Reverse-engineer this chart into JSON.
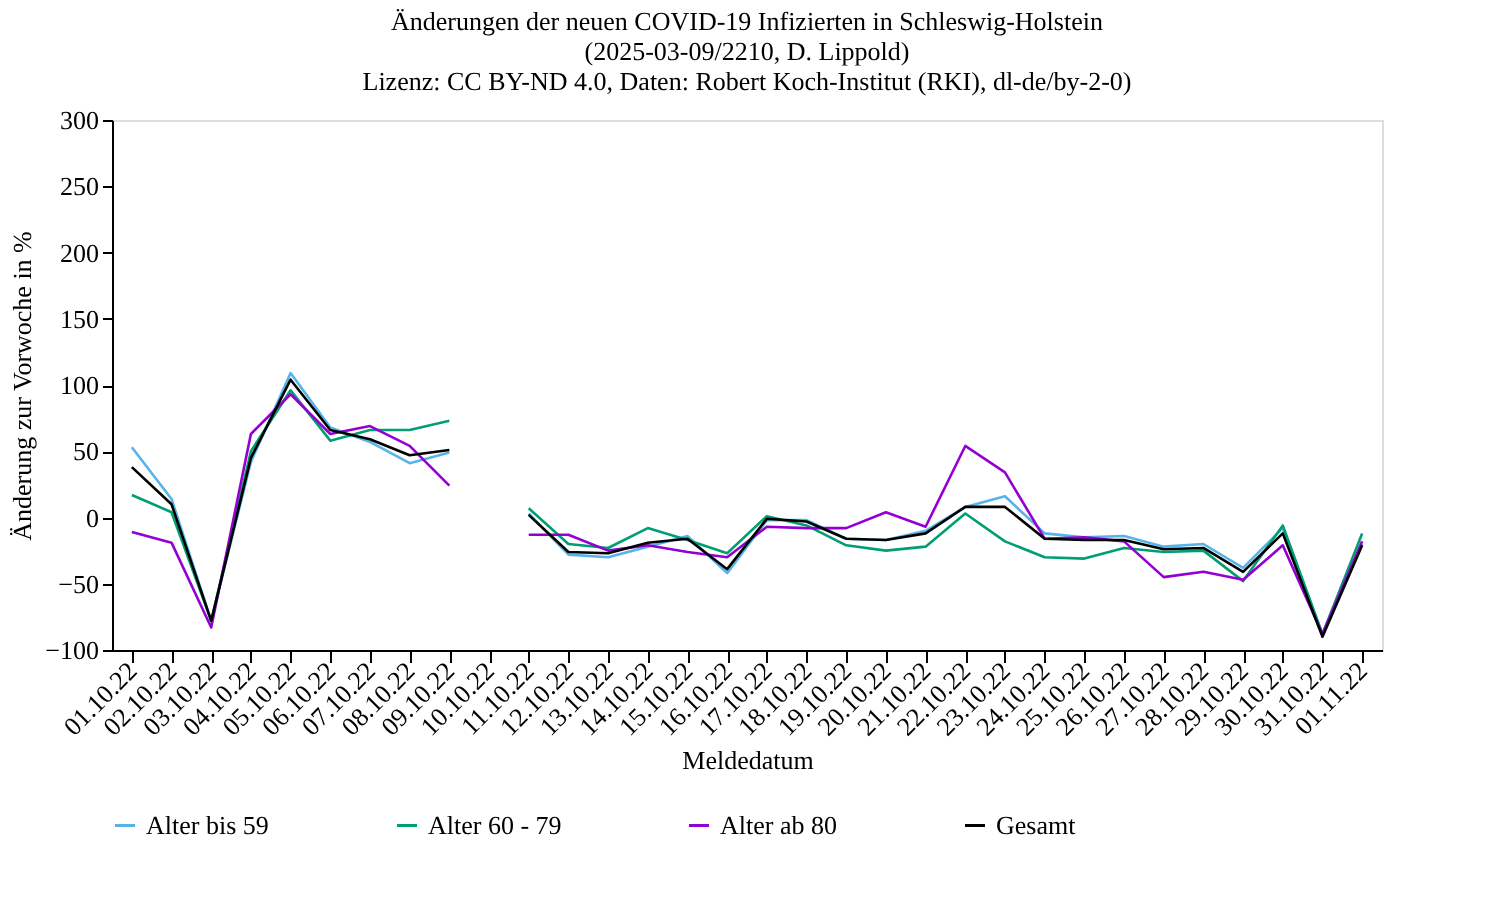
{
  "chart_data": {
    "type": "line",
    "title": "Änderungen der neuen COVID-19 Infizierten in Schleswig-Holstein\n(2025-03-09/2210, D. Lippold)\nLizenz: CC BY-ND 4.0, Daten: Robert Koch-Institut (RKI), dl-de/by-2-0)",
    "xlabel": "Meldedatum",
    "ylabel": "Änderung zur Vorwoche in %",
    "categories": [
      "01.10.22",
      "02.10.22",
      "03.10.22",
      "04.10.22",
      "05.10.22",
      "06.10.22",
      "07.10.22",
      "08.10.22",
      "09.10.22",
      "10.10.22",
      "11.10.22",
      "12.10.22",
      "13.10.22",
      "14.10.22",
      "15.10.22",
      "16.10.22",
      "17.10.22",
      "18.10.22",
      "19.10.22",
      "20.10.22",
      "21.10.22",
      "22.10.22",
      "23.10.22",
      "24.10.22",
      "25.10.22",
      "26.10.22",
      "27.10.22",
      "28.10.22",
      "29.10.22",
      "30.10.22",
      "31.10.22",
      "01.11.22"
    ],
    "series": [
      {
        "name": "Alter bis 59",
        "color": "#56b4e9",
        "values": [
          53,
          14,
          -78,
          42,
          109,
          68,
          57,
          41,
          49,
          null,
          3,
          -28,
          -30,
          -22,
          -14,
          -42,
          -2,
          -2,
          -16,
          -17,
          -10,
          8,
          16,
          -12,
          -15,
          -14,
          -22,
          -20,
          -38,
          -8,
          -88,
          -20
        ]
      },
      {
        "name": "Alter 60 - 79",
        "color": "#009e73",
        "values": [
          17,
          4,
          -78,
          50,
          96,
          58,
          66,
          66,
          73,
          null,
          7,
          -20,
          -23,
          -8,
          -17,
          -27,
          1,
          -6,
          -21,
          -25,
          -22,
          3,
          -18,
          -30,
          -31,
          -23,
          -26,
          -25,
          -48,
          -6,
          -88,
          -12
        ]
      },
      {
        "name": "Alter ab 80",
        "color": "#9400d3",
        "values": [
          -11,
          -19,
          -83,
          63,
          93,
          63,
          69,
          54,
          24,
          null,
          -13,
          -13,
          -25,
          -21,
          -26,
          -30,
          -7,
          -8,
          -8,
          4,
          -7,
          54,
          34,
          -16,
          -15,
          -18,
          -45,
          -41,
          -47,
          -21,
          -88,
          -18
        ]
      },
      {
        "name": "Gesamt",
        "color": "#000000",
        "values": [
          38,
          10,
          -78,
          45,
          104,
          66,
          59,
          47,
          51,
          null,
          2,
          -26,
          -27,
          -19,
          -16,
          -39,
          -1,
          -3,
          -16,
          -17,
          -12,
          8,
          8,
          -16,
          -17,
          -17,
          -24,
          -23,
          -41,
          -12,
          -90,
          -21
        ]
      }
    ],
    "ylim": [
      -100,
      300
    ],
    "yticks": [
      -100,
      -50,
      0,
      50,
      100,
      150,
      200,
      250,
      300
    ],
    "grid": false,
    "legend": "bottom",
    "line_style": "solid",
    "marker": "none"
  }
}
